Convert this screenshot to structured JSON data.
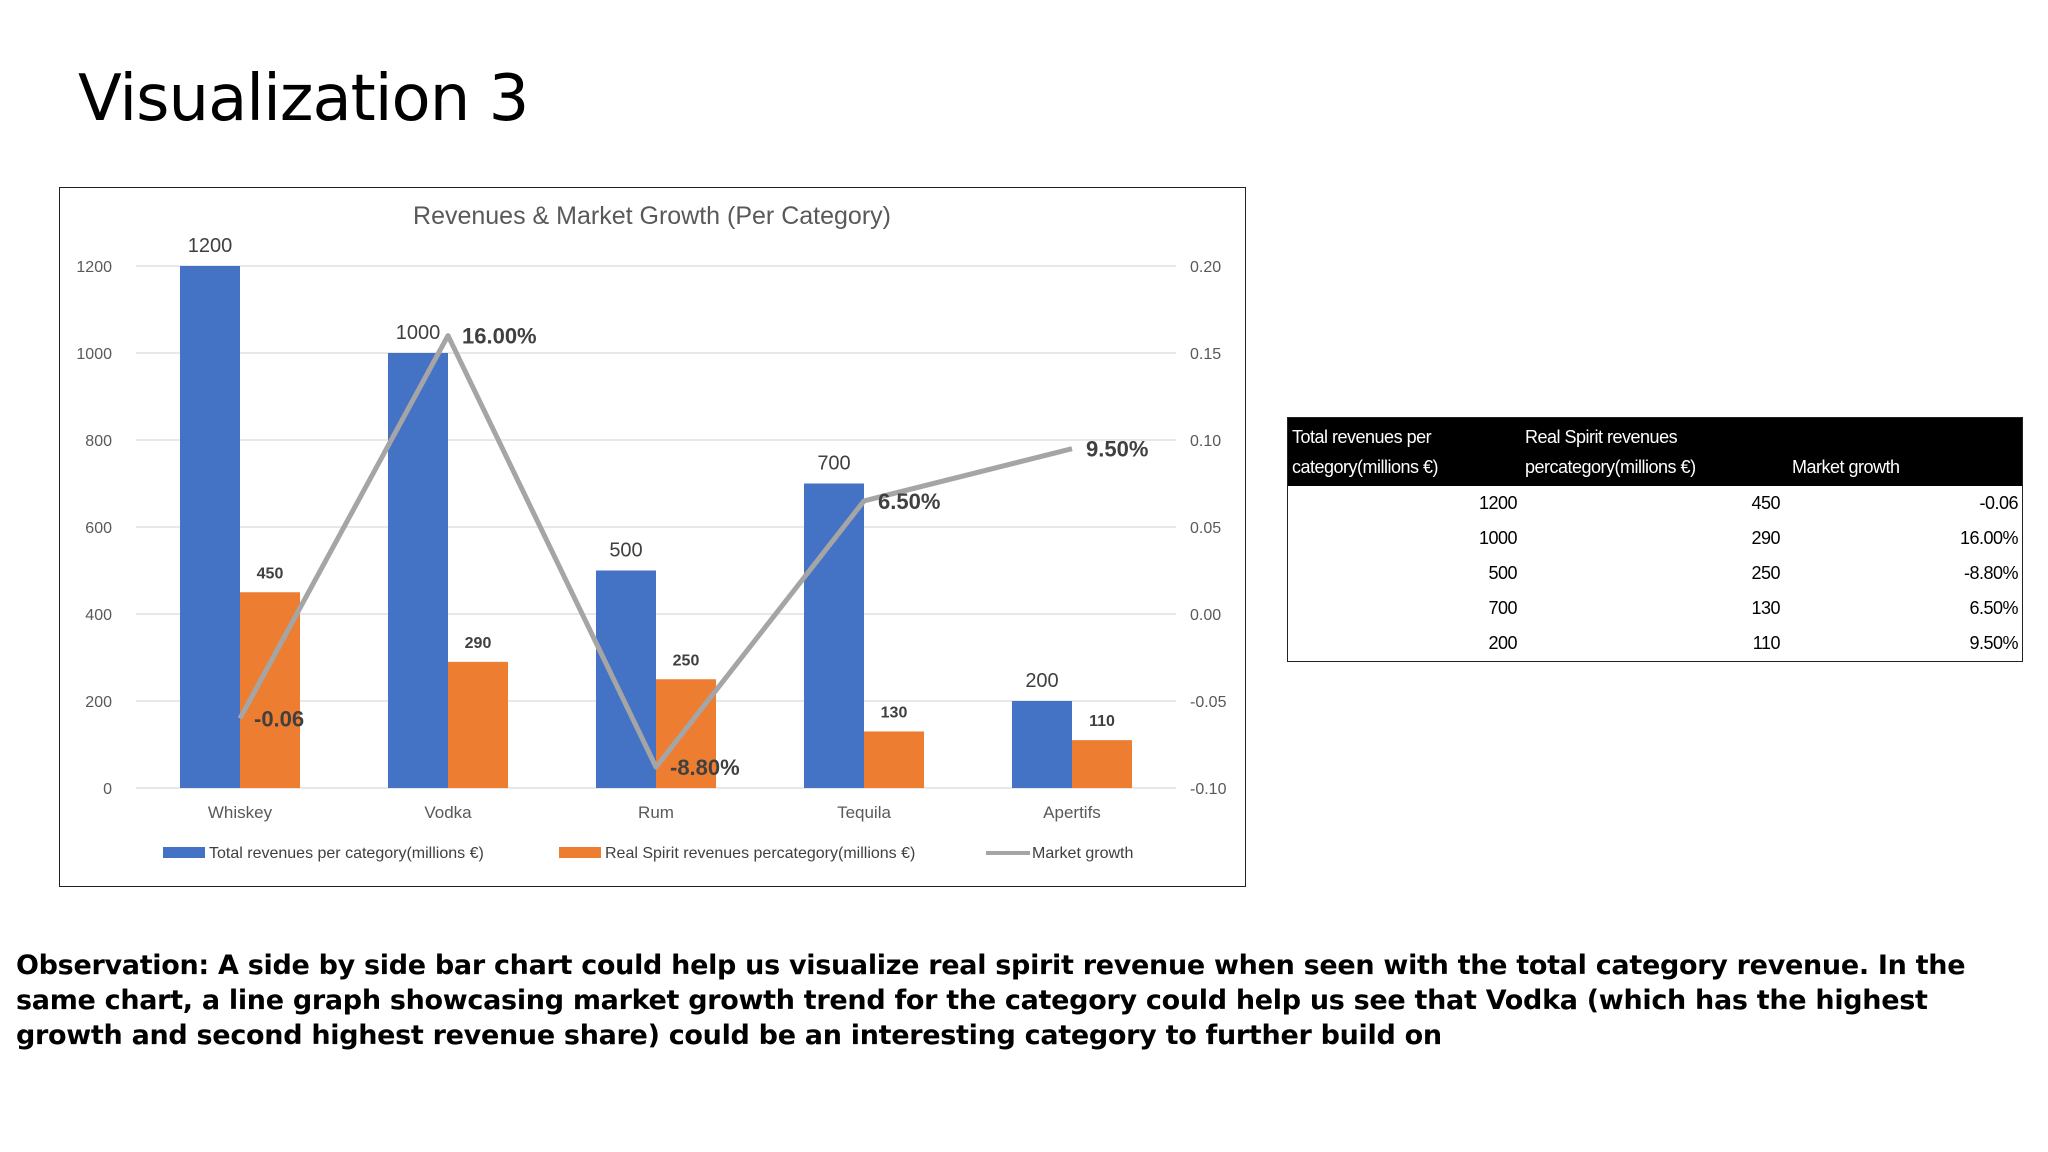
{
  "slide": {
    "title": "Visualization 3",
    "observation": "Observation: A side by side bar chart could help us visualize real spirit revenue when seen with the total category revenue. In the same chart, a line graph showcasing market growth trend for the category could help us see that Vodka (which has the highest growth and second highest revenue share) could be an interesting category to further build on"
  },
  "chart_data": {
    "type": "bar",
    "title": "Revenues & Market Growth (Per Category)",
    "categories": [
      "Whiskey",
      "Vodka",
      "Rum",
      "Tequila",
      "Apertifs"
    ],
    "series": [
      {
        "name": "Total revenues per category(millions €)",
        "type": "bar",
        "axis": "left",
        "color": "#4472c4",
        "values": [
          1200,
          1000,
          500,
          700,
          200
        ],
        "labels": [
          "1200",
          "1000",
          "500",
          "700",
          "200"
        ]
      },
      {
        "name": "Real Spirit revenues percategory(millions €)",
        "type": "bar",
        "axis": "left",
        "color": "#ed7d31",
        "values": [
          450,
          290,
          250,
          130,
          110
        ],
        "labels": [
          "450",
          "290",
          "250",
          "130",
          "110"
        ]
      },
      {
        "name": "Market growth",
        "type": "line",
        "axis": "right",
        "color": "#a5a5a5",
        "values": [
          -0.06,
          0.16,
          -0.088,
          0.065,
          0.095
        ],
        "labels": [
          "-0.06",
          "16.00%",
          "-8.80%",
          "6.50%",
          "9.50%"
        ]
      }
    ],
    "y_left": {
      "min": 0,
      "max": 1200,
      "ticks": [
        "0",
        "200",
        "400",
        "600",
        "800",
        "1000",
        "1200"
      ]
    },
    "y_right": {
      "min": -0.1,
      "max": 0.2,
      "ticks": [
        "-0.10",
        "-0.05",
        "0.00",
        "0.05",
        "0.10",
        "0.15",
        "0.20"
      ]
    },
    "grid": true,
    "legend": "bottom",
    "gridline_color": "#d9d9d9"
  },
  "table": {
    "headers": [
      [
        "Total revenues per",
        "category(millions €)"
      ],
      [
        "Real Spirit revenues",
        "percategory(millions €)"
      ],
      [
        "Market growth"
      ]
    ],
    "rows": [
      [
        "1200",
        "450",
        "-0.06"
      ],
      [
        "1000",
        "290",
        "16.00%"
      ],
      [
        "500",
        "250",
        "-8.80%"
      ],
      [
        "700",
        "130",
        "6.50%"
      ],
      [
        "200",
        "110",
        "9.50%"
      ]
    ]
  }
}
